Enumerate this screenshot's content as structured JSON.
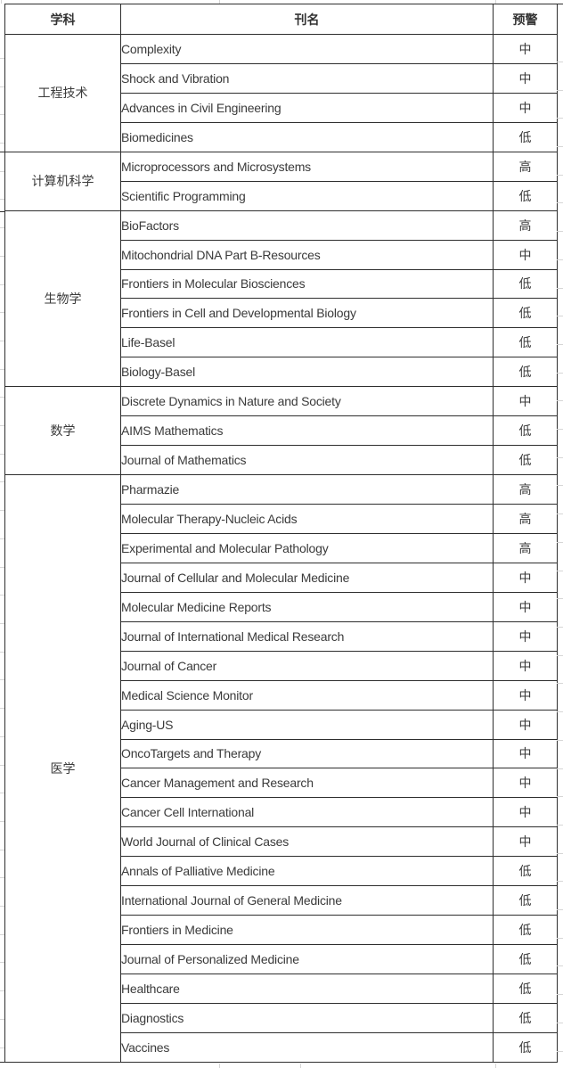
{
  "colors": {
    "border": "#2e2e2e",
    "text": "#3a3a3a",
    "header_text": "#333333",
    "background": "#ffffff",
    "gridline": "#d6d6d6"
  },
  "table": {
    "columns": {
      "subject": "学科",
      "journal": "刊名",
      "warning": "预警"
    },
    "sections": [
      {
        "subject": "工程技术",
        "journals": [
          {
            "name": "Complexity",
            "level": "中"
          },
          {
            "name": "Shock and Vibration",
            "level": "中"
          },
          {
            "name": "Advances in Civil Engineering",
            "level": "中"
          },
          {
            "name": "Biomedicines",
            "level": "低"
          }
        ]
      },
      {
        "subject": "计算机科学",
        "journals": [
          {
            "name": "Microprocessors and Microsystems",
            "level": "高"
          },
          {
            "name": "Scientific Programming",
            "level": "低"
          }
        ]
      },
      {
        "subject": "生物学",
        "journals": [
          {
            "name": "BioFactors",
            "level": "高"
          },
          {
            "name": "Mitochondrial DNA Part B-Resources",
            "level": "中"
          },
          {
            "name": "Frontiers in Molecular Biosciences",
            "level": "低"
          },
          {
            "name": "Frontiers in Cell and Developmental Biology",
            "level": "低"
          },
          {
            "name": "Life-Basel",
            "level": "低"
          },
          {
            "name": "Biology-Basel",
            "level": "低"
          }
        ]
      },
      {
        "subject": "数学",
        "journals": [
          {
            "name": "Discrete Dynamics in Nature and Society",
            "level": "中"
          },
          {
            "name": "AIMS Mathematics",
            "level": "低"
          },
          {
            "name": "Journal of Mathematics",
            "level": "低"
          }
        ]
      },
      {
        "subject": "医学",
        "journals": [
          {
            "name": "Pharmazie",
            "level": "高"
          },
          {
            "name": "Molecular Therapy-Nucleic Acids",
            "level": "高"
          },
          {
            "name": "Experimental and Molecular Pathology",
            "level": "高"
          },
          {
            "name": "Journal of Cellular and Molecular Medicine",
            "level": "中"
          },
          {
            "name": "Molecular Medicine Reports",
            "level": "中"
          },
          {
            "name": "Journal of International Medical Research",
            "level": "中"
          },
          {
            "name": "Journal of Cancer",
            "level": "中"
          },
          {
            "name": "Medical Science Monitor",
            "level": "中"
          },
          {
            "name": "Aging-US",
            "level": "中"
          },
          {
            "name": "OncoTargets and Therapy",
            "level": "中"
          },
          {
            "name": "Cancer Management and Research",
            "level": "中"
          },
          {
            "name": "Cancer Cell International",
            "level": "中"
          },
          {
            "name": "World Journal of Clinical Cases",
            "level": "中"
          },
          {
            "name": "Annals of Palliative Medicine",
            "level": "低"
          },
          {
            "name": "International Journal of General Medicine",
            "level": "低"
          },
          {
            "name": "Frontiers in Medicine",
            "level": "低"
          },
          {
            "name": "Journal of Personalized Medicine",
            "level": "低"
          },
          {
            "name": "Healthcare",
            "level": "低"
          },
          {
            "name": "Diagnostics",
            "level": "低"
          },
          {
            "name": "Vaccines",
            "level": "低"
          }
        ]
      }
    ]
  }
}
